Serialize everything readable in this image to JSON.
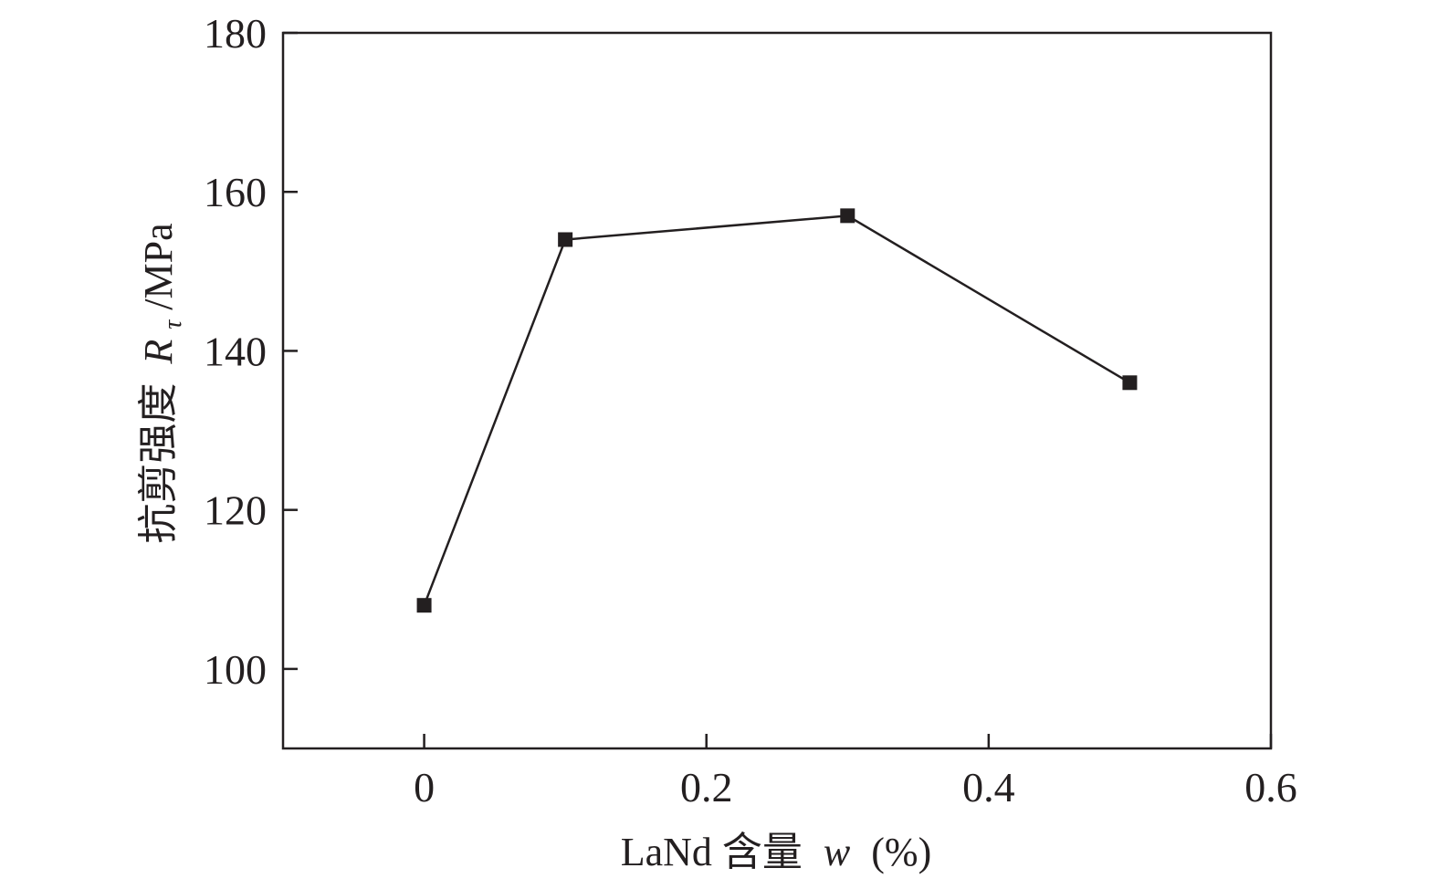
{
  "chart_data": {
    "type": "line",
    "x": [
      0,
      0.1,
      0.3,
      0.5
    ],
    "series": [
      {
        "values": [
          108,
          154,
          157,
          136
        ],
        "marker": "square",
        "color": "#231f20"
      }
    ],
    "xlabel": {
      "text": "LaNd 含量",
      "variable": "w",
      "unit": "(%)"
    },
    "ylabel": {
      "text": "抗剪强度",
      "variable": "R",
      "subscript": "τ",
      "unit": "/MPa"
    },
    "xlim": [
      -0.1,
      0.6
    ],
    "ylim": [
      90,
      180
    ],
    "x_ticks": [
      0,
      0.2,
      0.4,
      0.6
    ],
    "x_tick_labels": [
      "0",
      "0.2",
      "0.4",
      "0.6"
    ],
    "y_ticks": [
      100,
      120,
      140,
      160,
      180
    ],
    "y_tick_labels": [
      "100",
      "120",
      "140",
      "160",
      "180"
    ],
    "grid": false,
    "legend": "none",
    "axis_color": "#231f20"
  }
}
